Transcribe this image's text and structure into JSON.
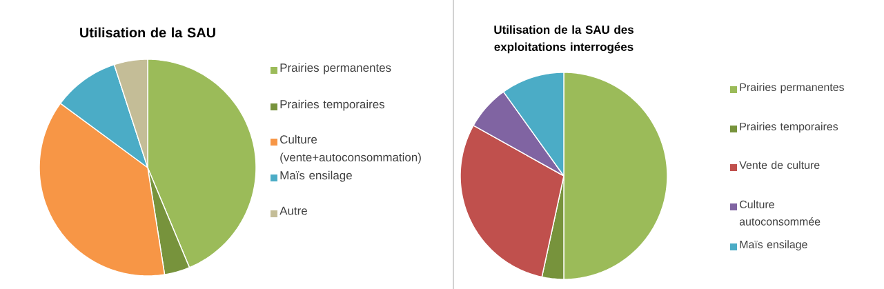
{
  "chart_data": [
    {
      "type": "pie",
      "title": "Utilisation de la SAU",
      "legend": "right",
      "categories": [
        "Prairies permanentes",
        "Prairies temporaires",
        "Culture (vente+autoconsommation)",
        "Maïs ensilage",
        "Autre"
      ],
      "values": [
        43.7,
        3.8,
        37.6,
        9.9,
        5.0
      ],
      "colors": [
        "#9bbb59",
        "#77933c",
        "#f79646",
        "#4bacc6",
        "#c4bd97"
      ]
    },
    {
      "type": "pie",
      "title": "Utilisation de la SAU des exploitations interrogées",
      "legend": "right",
      "categories": [
        "Prairies permanentes",
        "Prairies temporaires",
        "Vente de culture",
        "Culture autoconsommée",
        "Maïs ensilage"
      ],
      "values": [
        50.0,
        3.4,
        29.7,
        7.0,
        9.9
      ],
      "colors": [
        "#9bbb59",
        "#77933c",
        "#c0504d",
        "#8064a2",
        "#4bacc6"
      ]
    }
  ]
}
